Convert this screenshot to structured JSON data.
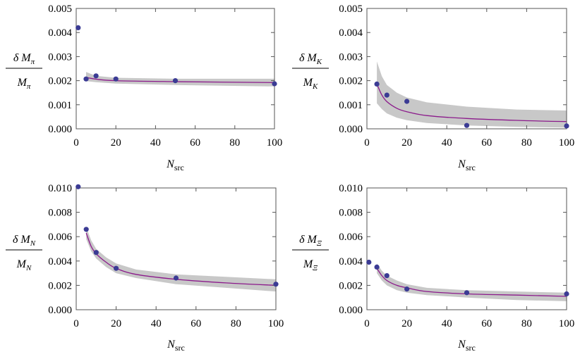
{
  "chart_data": [
    {
      "type": "scatter",
      "ylabel": {
        "num": "δ M",
        "den": "M",
        "sub": "π"
      },
      "xlabel": {
        "main": "N",
        "sub": "src"
      },
      "xlim": [
        0,
        100
      ],
      "ylim": [
        0,
        0.005
      ],
      "xticks": [
        "0",
        "20",
        "40",
        "60",
        "80",
        "100"
      ],
      "yticks": [
        "0.000",
        "0.001",
        "0.002",
        "0.003",
        "0.004",
        "0.005"
      ],
      "points": {
        "x": [
          1,
          5,
          10,
          20,
          50,
          100
        ],
        "y": [
          0.0042,
          0.00207,
          0.0022,
          0.00207,
          0.002,
          0.00187
        ]
      },
      "fit": {
        "x_start": 5,
        "x": [
          5,
          10,
          20,
          50,
          100
        ],
        "y": [
          0.00214,
          0.00206,
          0.002,
          0.00196,
          0.00192
        ]
      },
      "band": {
        "lower": [
          0.00198,
          0.00194,
          0.00188,
          0.00182,
          0.00176
        ],
        "upper": [
          0.00236,
          0.0022,
          0.00212,
          0.00208,
          0.00208
        ]
      },
      "colors": {
        "points": "#3b3b94",
        "fit": "#8b1a8b",
        "band": "#c8c8c8"
      }
    },
    {
      "type": "scatter",
      "ylabel": {
        "num": "δ M",
        "den": "M",
        "sub": "K"
      },
      "xlabel": {
        "main": "N",
        "sub": "src"
      },
      "xlim": [
        0,
        100
      ],
      "ylim": [
        0,
        0.005
      ],
      "xticks": [
        "0",
        "20",
        "40",
        "60",
        "80",
        "100"
      ],
      "yticks": [
        "0.000",
        "0.001",
        "0.002",
        "0.003",
        "0.004",
        "0.005"
      ],
      "points": {
        "x": [
          5,
          10,
          20,
          50,
          100
        ],
        "y": [
          0.00186,
          0.0014,
          0.00114,
          0.00014,
          0.00012
        ]
      },
      "fit": {
        "x_start": 5,
        "x": [
          5,
          7.5,
          10,
          15,
          20,
          30,
          50,
          75,
          100
        ],
        "y": [
          0.00186,
          0.0014,
          0.00113,
          0.00085,
          0.00071,
          0.00055,
          0.00043,
          0.00035,
          0.0003
        ]
      },
      "band": {
        "lower": [
          0.00106,
          0.00082,
          0.00064,
          0.00046,
          0.00036,
          0.00024,
          0.00014,
          8e-05,
          5e-05
        ],
        "upper": [
          0.0028,
          0.00218,
          0.00182,
          0.0015,
          0.0013,
          0.0011,
          0.00092,
          0.0008,
          0.00076
        ]
      },
      "colors": {
        "points": "#3b3b94",
        "fit": "#8b1a8b",
        "band": "#c8c8c8"
      }
    },
    {
      "type": "scatter",
      "ylabel": {
        "num": "δ M",
        "den": "M",
        "sub": "N"
      },
      "xlabel": {
        "main": "N",
        "sub": "src"
      },
      "xlim": [
        0,
        100
      ],
      "ylim": [
        0,
        0.01
      ],
      "xticks": [
        "0",
        "20",
        "40",
        "60",
        "80",
        "100"
      ],
      "yticks": [
        "0.000",
        "0.002",
        "0.004",
        "0.006",
        "0.008",
        "0.010"
      ],
      "points": {
        "x": [
          1,
          5,
          10,
          20,
          50,
          100
        ],
        "y": [
          0.0101,
          0.0066,
          0.0047,
          0.0034,
          0.0026,
          0.0021
        ]
      },
      "fit": {
        "x_start": 5,
        "x": [
          5,
          7.5,
          10,
          15,
          20,
          30,
          50,
          75,
          100
        ],
        "y": [
          0.0063,
          0.0052,
          0.0046,
          0.0039,
          0.0034,
          0.0029,
          0.0025,
          0.0022,
          0.002
        ]
      },
      "band": {
        "lower": [
          0.0058,
          0.0048,
          0.0042,
          0.0035,
          0.003,
          0.0026,
          0.0021,
          0.0018,
          0.0015
        ],
        "upper": [
          0.0068,
          0.0057,
          0.005,
          0.0043,
          0.0038,
          0.0033,
          0.0029,
          0.0027,
          0.0025
        ]
      },
      "colors": {
        "points": "#3b3b94",
        "fit": "#8b1a8b",
        "band": "#c8c8c8"
      }
    },
    {
      "type": "scatter",
      "ylabel": {
        "num": "δ M",
        "den": "M",
        "sub": "Ξ"
      },
      "xlabel": {
        "main": "N",
        "sub": "src"
      },
      "xlim": [
        0,
        100
      ],
      "ylim": [
        0,
        0.01
      ],
      "xticks": [
        "0",
        "20",
        "40",
        "60",
        "80",
        "100"
      ],
      "yticks": [
        "0.000",
        "0.002",
        "0.004",
        "0.006",
        "0.008",
        "0.010"
      ],
      "points": {
        "x": [
          1,
          5,
          10,
          20,
          50,
          100
        ],
        "y": [
          0.0039,
          0.0035,
          0.0028,
          0.0017,
          0.0014,
          0.0013
        ]
      },
      "fit": {
        "x_start": 5,
        "x": [
          5,
          7.5,
          10,
          15,
          20,
          30,
          50,
          75,
          100
        ],
        "y": [
          0.0034,
          0.0028,
          0.0024,
          0.002,
          0.0018,
          0.0015,
          0.0013,
          0.0012,
          0.0011
        ]
      },
      "band": {
        "lower": [
          0.003,
          0.0024,
          0.002,
          0.0016,
          0.0014,
          0.0012,
          0.001,
          0.0008,
          0.0007
        ],
        "upper": [
          0.0038,
          0.0032,
          0.0028,
          0.0024,
          0.0021,
          0.0018,
          0.0016,
          0.0015,
          0.0014
        ]
      },
      "colors": {
        "points": "#3b3b94",
        "fit": "#8b1a8b",
        "band": "#c8c8c8"
      }
    }
  ]
}
